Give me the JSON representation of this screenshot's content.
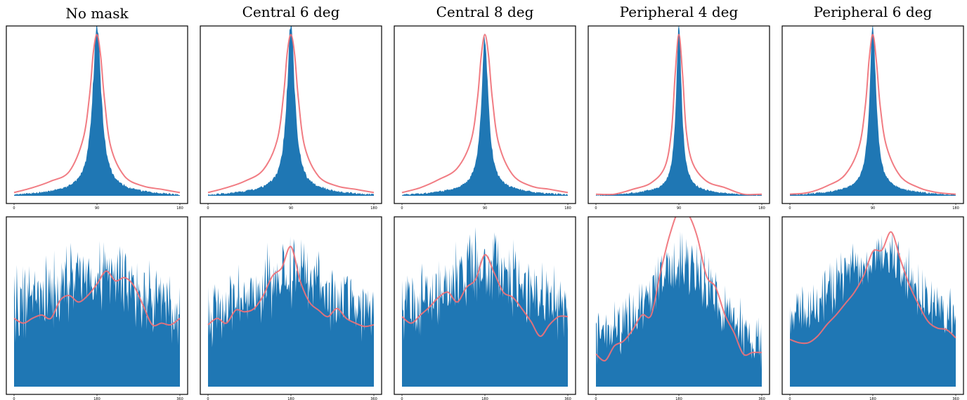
{
  "colors": {
    "histogram": "#1f77b4",
    "fit": "#f07178",
    "frame": "#000000"
  },
  "columns": [
    "No mask",
    "Central 6 deg",
    "Central 8 deg",
    "Peripheral 4 deg",
    "Peripheral 6 deg"
  ],
  "chart_data": [
    {
      "type": "area",
      "title": "No mask",
      "row": "top",
      "xlim": [
        0,
        180
      ],
      "x_ticks": [
        "0",
        "90",
        "180"
      ],
      "histogram_profile": {
        "center": 90,
        "peak": 1.0,
        "width": 5.5,
        "tail": 0.12,
        "noise": 0.05
      },
      "fit_curve": {
        "x": [
          0,
          20,
          40,
          60,
          75,
          82,
          86,
          90,
          94,
          98,
          105,
          120,
          140,
          160,
          180
        ],
        "y": [
          0.02,
          0.05,
          0.09,
          0.15,
          0.35,
          0.62,
          0.88,
          0.99,
          0.86,
          0.6,
          0.3,
          0.12,
          0.06,
          0.04,
          0.02
        ]
      }
    },
    {
      "type": "area",
      "title": "Central 6 deg",
      "row": "top",
      "xlim": [
        0,
        180
      ],
      "x_ticks": [
        "0",
        "90",
        "180"
      ],
      "histogram_profile": {
        "center": 90,
        "peak": 1.0,
        "width": 5,
        "tail": 0.12,
        "noise": 0.05
      },
      "fit_curve": {
        "x": [
          0,
          20,
          40,
          60,
          75,
          82,
          86,
          90,
          94,
          98,
          105,
          120,
          140,
          160,
          180
        ],
        "y": [
          0.02,
          0.05,
          0.09,
          0.16,
          0.34,
          0.62,
          0.88,
          0.99,
          0.87,
          0.6,
          0.3,
          0.12,
          0.06,
          0.04,
          0.02
        ]
      }
    },
    {
      "type": "area",
      "title": "Central 8 deg",
      "row": "top",
      "xlim": [
        0,
        180
      ],
      "x_ticks": [
        "0",
        "90",
        "180"
      ],
      "histogram_profile": {
        "center": 90,
        "peak": 0.92,
        "width": 4.5,
        "tail": 0.12,
        "noise": 0.04
      },
      "fit_curve": {
        "x": [
          0,
          20,
          40,
          60,
          75,
          82,
          86,
          90,
          94,
          98,
          105,
          120,
          140,
          160,
          180
        ],
        "y": [
          0.02,
          0.05,
          0.1,
          0.17,
          0.34,
          0.6,
          0.86,
          0.99,
          0.86,
          0.6,
          0.32,
          0.13,
          0.06,
          0.04,
          0.02
        ]
      }
    },
    {
      "type": "area",
      "title": "Peripheral 4 deg",
      "row": "top",
      "xlim": [
        0,
        180
      ],
      "x_ticks": [
        "0",
        "90",
        "180"
      ],
      "histogram_profile": {
        "center": 90,
        "peak": 1.0,
        "width": 3.6,
        "tail": 0.09,
        "noise": 0.04
      },
      "fit_curve": {
        "x": [
          0,
          20,
          40,
          60,
          75,
          82,
          86,
          90,
          94,
          98,
          105,
          120,
          140,
          160,
          180
        ],
        "y": [
          0.01,
          0.01,
          0.04,
          0.08,
          0.18,
          0.4,
          0.75,
          0.99,
          0.75,
          0.4,
          0.2,
          0.09,
          0.05,
          0.01,
          0.01
        ]
      }
    },
    {
      "type": "area",
      "title": "Peripheral 6 deg",
      "row": "top",
      "xlim": [
        0,
        180
      ],
      "x_ticks": [
        "0",
        "90",
        "180"
      ],
      "histogram_profile": {
        "center": 90,
        "peak": 1.0,
        "width": 4.2,
        "tail": 0.11,
        "noise": 0.04
      },
      "fit_curve": {
        "x": [
          0,
          20,
          40,
          60,
          75,
          82,
          86,
          90,
          94,
          98,
          105,
          120,
          140,
          160,
          180
        ],
        "y": [
          0.01,
          0.02,
          0.06,
          0.13,
          0.3,
          0.56,
          0.84,
          0.99,
          0.82,
          0.55,
          0.3,
          0.12,
          0.05,
          0.02,
          0.01
        ]
      }
    },
    {
      "type": "area",
      "title": "",
      "row": "bottom",
      "xlim": [
        0,
        360
      ],
      "x_ticks": [
        "0",
        "180",
        "360"
      ],
      "histogram_profile": {
        "base": 0.46,
        "bump": 0.2,
        "bump_center": 180,
        "bump_width": 80,
        "noise": 0.18
      },
      "fit_curve": {
        "x": [
          0,
          20,
          40,
          60,
          80,
          100,
          120,
          140,
          160,
          180,
          200,
          220,
          240,
          260,
          280,
          300,
          320,
          340,
          360
        ],
        "y": [
          0.42,
          0.39,
          0.42,
          0.44,
          0.42,
          0.53,
          0.56,
          0.52,
          0.56,
          0.63,
          0.71,
          0.65,
          0.67,
          0.62,
          0.5,
          0.38,
          0.39,
          0.38,
          0.42
        ]
      }
    },
    {
      "type": "area",
      "title": "",
      "row": "bottom",
      "xlim": [
        0,
        360
      ],
      "x_ticks": [
        "0",
        "180",
        "360"
      ],
      "histogram_profile": {
        "base": 0.42,
        "bump": 0.27,
        "bump_center": 185,
        "bump_width": 70,
        "noise": 0.17
      },
      "fit_curve": {
        "x": [
          0,
          20,
          40,
          60,
          80,
          100,
          120,
          140,
          160,
          180,
          200,
          220,
          240,
          260,
          280,
          300,
          320,
          340,
          360
        ],
        "y": [
          0.38,
          0.42,
          0.39,
          0.47,
          0.46,
          0.48,
          0.56,
          0.68,
          0.73,
          0.86,
          0.65,
          0.52,
          0.47,
          0.43,
          0.48,
          0.42,
          0.39,
          0.37,
          0.38
        ]
      }
    },
    {
      "type": "area",
      "title": "",
      "row": "bottom",
      "xlim": [
        0,
        360
      ],
      "x_ticks": [
        "0",
        "180",
        "360"
      ],
      "histogram_profile": {
        "base": 0.45,
        "bump": 0.26,
        "bump_center": 180,
        "bump_width": 85,
        "noise": 0.17
      },
      "fit_curve": {
        "x": [
          0,
          20,
          40,
          60,
          80,
          100,
          120,
          140,
          160,
          180,
          200,
          220,
          240,
          260,
          280,
          300,
          320,
          340,
          360
        ],
        "y": [
          0.43,
          0.39,
          0.44,
          0.49,
          0.55,
          0.58,
          0.52,
          0.61,
          0.66,
          0.81,
          0.7,
          0.58,
          0.55,
          0.48,
          0.4,
          0.31,
          0.38,
          0.43,
          0.43
        ]
      }
    },
    {
      "type": "area",
      "title": "",
      "row": "bottom",
      "xlim": [
        0,
        360
      ],
      "x_ticks": [
        "0",
        "180",
        "360"
      ],
      "histogram_profile": {
        "base": 0.24,
        "bump": 0.5,
        "bump_center": 180,
        "bump_width": 75,
        "noise": 0.14
      },
      "fit_curve": {
        "x": [
          0,
          20,
          40,
          60,
          80,
          100,
          120,
          140,
          160,
          180,
          200,
          220,
          240,
          260,
          280,
          300,
          320,
          340,
          360
        ],
        "y": [
          0.2,
          0.16,
          0.25,
          0.28,
          0.35,
          0.44,
          0.44,
          0.7,
          0.93,
          1.08,
          1.06,
          0.92,
          0.68,
          0.61,
          0.44,
          0.33,
          0.2,
          0.21,
          0.21
        ]
      }
    },
    {
      "type": "area",
      "title": "",
      "row": "bottom",
      "xlim": [
        0,
        360
      ],
      "x_ticks": [
        "0",
        "180",
        "360"
      ],
      "histogram_profile": {
        "base": 0.35,
        "bump": 0.45,
        "bump_center": 185,
        "bump_width": 85,
        "noise": 0.13
      },
      "fit_curve": {
        "x": [
          0,
          20,
          40,
          60,
          80,
          100,
          120,
          140,
          160,
          180,
          200,
          220,
          240,
          260,
          280,
          300,
          320,
          340,
          360
        ],
        "y": [
          0.29,
          0.27,
          0.27,
          0.31,
          0.38,
          0.44,
          0.51,
          0.58,
          0.68,
          0.83,
          0.84,
          0.95,
          0.78,
          0.62,
          0.5,
          0.4,
          0.36,
          0.35,
          0.3
        ]
      }
    }
  ]
}
